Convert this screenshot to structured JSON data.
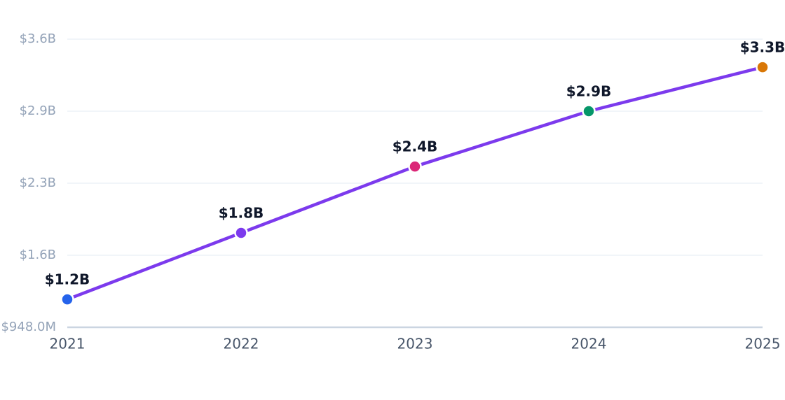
{
  "chart_data": {
    "type": "line",
    "categories": [
      "2021",
      "2022",
      "2023",
      "2024",
      "2025"
    ],
    "values": [
      1205000000,
      1817000000,
      2428000000,
      2937000000,
      3342000000
    ],
    "value_labels": [
      "$1.2B",
      "$1.8B",
      "$2.4B",
      "$2.9B",
      "$3.3B"
    ],
    "color": "#7c3aed",
    "point_colors": [
      "#2563eb",
      "#7c3aed",
      "#db2777",
      "#059669",
      "#d97706"
    ],
    "ylim": [
      948000000,
      3600000000
    ],
    "yticks": [
      {
        "value": 948000000,
        "label": "$948.0M"
      },
      {
        "value": 1611000000,
        "label": "$1.6B"
      },
      {
        "value": 2274000000,
        "label": "$2.3B"
      },
      {
        "value": 2937000000,
        "label": "$2.9B"
      },
      {
        "value": 3600000000,
        "label": "$3.6B"
      }
    ],
    "grid": true
  }
}
